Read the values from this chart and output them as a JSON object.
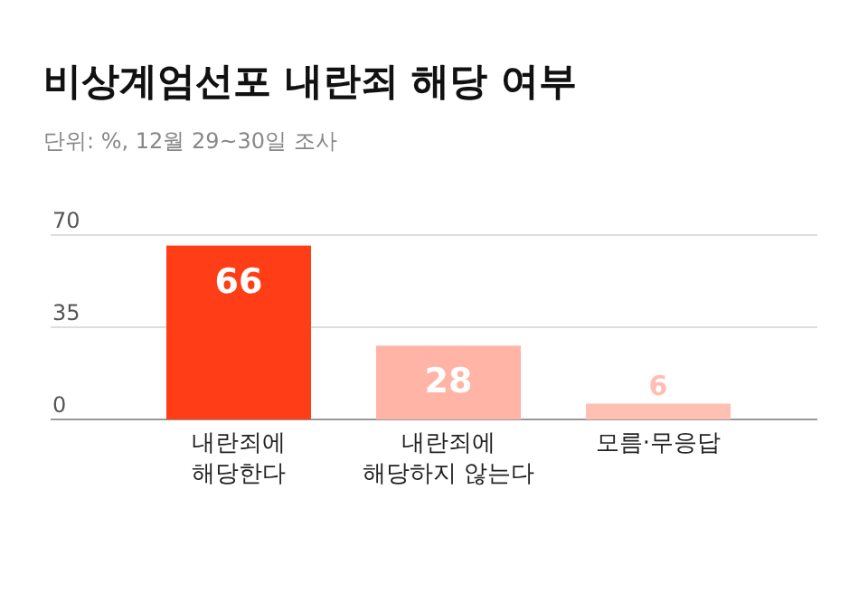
{
  "chart_data": {
    "type": "bar",
    "title": "비상계엄선포 내란죄 해당 여부",
    "subtitle": "단위: %, 12월 29~30일 조사",
    "categories": [
      "내란죄에\n해당한다",
      "내란죄에\n해당하지 않는다",
      "모름·무응답"
    ],
    "values": [
      66,
      28,
      6
    ],
    "colors": [
      "#ff3d17",
      "#ffb4a6",
      "#ffbfb3"
    ],
    "ylim": [
      0,
      70
    ],
    "yticks": [
      0,
      35,
      70
    ],
    "grid": "y",
    "data_labels": true
  }
}
